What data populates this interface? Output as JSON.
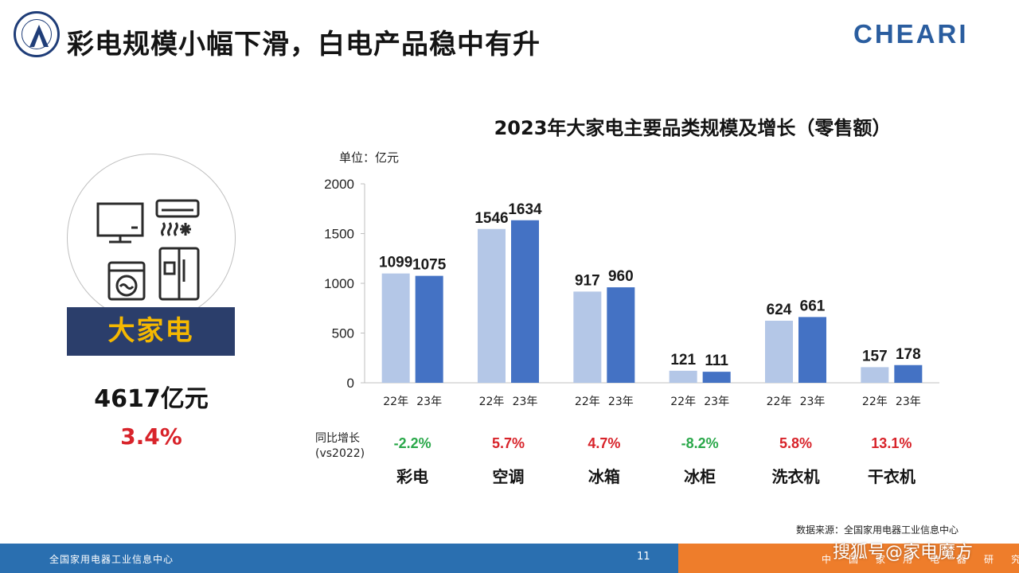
{
  "header": {
    "title": "彩电规模小幅下滑，白电产品稳中有升",
    "brand": "CHEARI"
  },
  "summary": {
    "category": "大家电",
    "total": "4617亿元",
    "growth": "3.4%"
  },
  "chart_data": {
    "type": "bar",
    "title": "2023年大家电主要品类规模及增长（零售额）",
    "unit": "单位：亿元",
    "categories": [
      "彩电",
      "空调",
      "冰箱",
      "冰柜",
      "洗衣机",
      "干衣机"
    ],
    "tick_labels_x": [
      "22年",
      "23年"
    ],
    "series": [
      {
        "name": "22年",
        "values": [
          1099,
          1546,
          917,
          121,
          624,
          157
        ],
        "color": "#b4c7e7"
      },
      {
        "name": "23年",
        "values": [
          1075,
          1634,
          960,
          111,
          661,
          178
        ],
        "color": "#4472c4"
      }
    ],
    "ylim": [
      0,
      2000
    ],
    "yticks": [
      0,
      500,
      1000,
      1500,
      2000
    ],
    "growth_label": [
      "同比增长",
      "(vs2022)"
    ],
    "growth": [
      "-2.2%",
      "5.7%",
      "4.7%",
      "-8.2%",
      "5.8%",
      "13.1%"
    ],
    "growth_colors": [
      "#2aa84a",
      "#d8232a",
      "#d8232a",
      "#2aa84a",
      "#d8232a",
      "#d8232a"
    ],
    "grid": false,
    "legend": "none"
  },
  "footer": {
    "source": "数据来源：全国家用电器工业信息中心",
    "left_text": "全国家用电器工业信息中心",
    "page_number": "11",
    "right_text": "中国家用电器研究院",
    "watermark_caption": "搜狐号@家电魔方"
  }
}
